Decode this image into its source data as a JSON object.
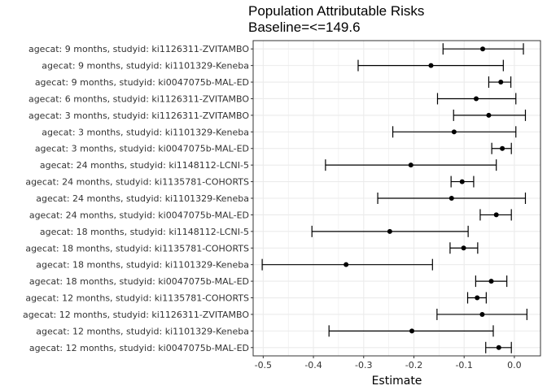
{
  "chart_data": {
    "type": "scatter",
    "subtype": "forest-plot-with-error-bars",
    "title": "Population Attributable Risks",
    "subtitle": "Baseline=<=149.6",
    "xlabel": "Estimate",
    "ylabel": "",
    "xlim": [
      -0.52,
      0.052
    ],
    "xticks": [
      -0.5,
      -0.4,
      -0.3,
      -0.2,
      -0.1,
      0.0
    ],
    "xtick_labels": [
      "-0.5",
      "-0.4",
      "-0.3",
      "-0.2",
      "-0.1",
      "0.0"
    ],
    "grid": true,
    "legend": "none",
    "colors": {
      "point": "#000000",
      "bar": "#000000",
      "grid": "#ebebeb",
      "panel_border": "#333333"
    },
    "categories": [
      "agecat: 9 months, studyid: ki1126311-ZVITAMBO",
      "agecat: 9 months, studyid: ki1101329-Keneba",
      "agecat: 9 months, studyid: ki0047075b-MAL-ED",
      "agecat: 6 months, studyid: ki1126311-ZVITAMBO",
      "agecat: 3 months, studyid: ki1126311-ZVITAMBO",
      "agecat: 3 months, studyid: ki1101329-Keneba",
      "agecat: 3 months, studyid: ki0047075b-MAL-ED",
      "agecat: 24 months, studyid: ki1148112-LCNI-5",
      "agecat: 24 months, studyid: ki1135781-COHORTS",
      "agecat: 24 months, studyid: ki1101329-Keneba",
      "agecat: 24 months, studyid: ki0047075b-MAL-ED",
      "agecat: 18 months, studyid: ki1148112-LCNI-5",
      "agecat: 18 months, studyid: ki1135781-COHORTS",
      "agecat: 18 months, studyid: ki1101329-Keneba",
      "agecat: 18 months, studyid: ki0047075b-MAL-ED",
      "agecat: 12 months, studyid: ki1135781-COHORTS",
      "agecat: 12 months, studyid: ki1126311-ZVITAMBO",
      "agecat: 12 months, studyid: ki1101329-Keneba",
      "agecat: 12 months, studyid: ki0047075b-MAL-ED"
    ],
    "estimate": [
      -0.063,
      -0.166,
      -0.027,
      -0.076,
      -0.051,
      -0.12,
      -0.024,
      -0.206,
      -0.104,
      -0.125,
      -0.036,
      -0.248,
      -0.101,
      -0.335,
      -0.046,
      -0.074,
      -0.064,
      -0.204,
      -0.031
    ],
    "lower": [
      -0.142,
      -0.311,
      -0.051,
      -0.153,
      -0.121,
      -0.242,
      -0.045,
      -0.376,
      -0.126,
      -0.272,
      -0.068,
      -0.403,
      -0.128,
      -0.502,
      -0.077,
      -0.093,
      -0.154,
      -0.369,
      -0.057
    ],
    "upper": [
      0.018,
      -0.022,
      -0.007,
      0.003,
      0.022,
      0.003,
      -0.006,
      -0.036,
      -0.081,
      0.022,
      -0.006,
      -0.092,
      -0.073,
      -0.163,
      -0.015,
      -0.056,
      0.025,
      -0.042,
      -0.006
    ]
  }
}
